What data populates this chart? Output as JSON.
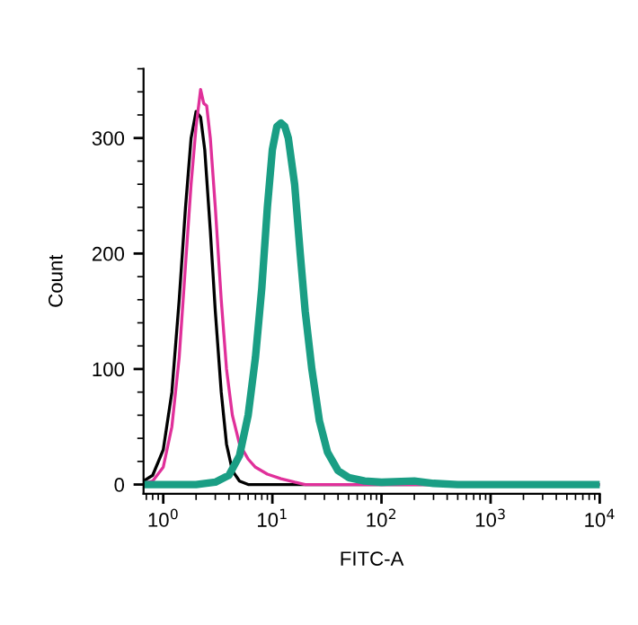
{
  "chart_data": {
    "type": "line",
    "xlabel": "FITC-A",
    "ylabel": "Count",
    "log": "x",
    "xlim": [
      0.66,
      10000
    ],
    "xticks": [
      {
        "value": 1,
        "label": "10$^{0}$"
      },
      {
        "value": 10,
        "label": "10$^{1}$"
      },
      {
        "value": 100,
        "label": "10$^{2}$"
      },
      {
        "value": 1000,
        "label": "10$^{3}$"
      },
      {
        "value": 10000,
        "label": "10$^{4}$"
      }
    ],
    "ylim": [
      -8,
      360
    ],
    "yticks": [
      0,
      100,
      200,
      300
    ],
    "grid": false,
    "legend": false,
    "marker": "none",
    "line_style": "solid",
    "series": [
      {
        "color": "#000000",
        "x": [
          0.66,
          0.8,
          1.0,
          1.2,
          1.4,
          1.6,
          1.8,
          2.0,
          2.2,
          2.4,
          2.7,
          3.0,
          3.4,
          3.8,
          4.3,
          5,
          6,
          10000
        ],
        "values": [
          3,
          8,
          30,
          80,
          160,
          240,
          300,
          323,
          318,
          290,
          220,
          150,
          80,
          35,
          12,
          3,
          0,
          0
        ]
      },
      {
        "color": "#e0309a",
        "x": [
          0.66,
          0.8,
          1.0,
          1.2,
          1.4,
          1.6,
          1.8,
          2.0,
          2.2,
          2.35,
          2.5,
          2.7,
          3.0,
          3.4,
          3.8,
          4.3,
          5,
          6,
          7,
          9,
          12,
          16,
          20,
          10000
        ],
        "values": [
          1,
          3,
          15,
          50,
          110,
          190,
          260,
          310,
          342,
          330,
          328,
          300,
          240,
          160,
          100,
          60,
          35,
          22,
          15,
          9,
          5,
          2,
          0,
          0
        ]
      },
      {
        "color": "#1a9e84",
        "x": [
          0.66,
          2,
          3,
          4,
          5,
          6,
          7,
          8,
          9,
          10,
          11,
          12,
          13,
          14,
          16,
          18,
          20,
          23,
          27,
          32,
          40,
          50,
          70,
          100,
          200,
          300,
          500,
          10000
        ],
        "values": [
          0,
          0,
          2,
          8,
          25,
          60,
          110,
          170,
          240,
          290,
          310,
          313,
          310,
          300,
          260,
          200,
          150,
          100,
          55,
          28,
          12,
          6,
          3,
          2,
          3,
          1,
          0,
          0
        ]
      }
    ]
  }
}
